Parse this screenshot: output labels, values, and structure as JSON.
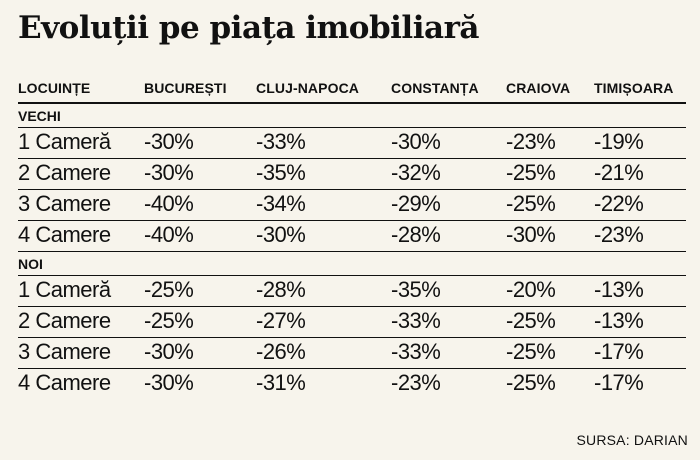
{
  "title": "Evoluții pe piața imobiliară",
  "headers": [
    "LOCUINȚE",
    "BUCUREȘTI",
    "CLUJ-NAPOCA",
    "CONSTANȚA",
    "CRAIOVA",
    "TIMIȘOARA"
  ],
  "sections": [
    {
      "label": "VECHI",
      "rows": [
        [
          "1 Cameră",
          "-30%",
          "-33%",
          "-30%",
          "-23%",
          "-19%"
        ],
        [
          "2 Camere",
          "-30%",
          "-35%",
          "-32%",
          "-25%",
          "-21%"
        ],
        [
          "3 Camere",
          "-40%",
          "-34%",
          "-29%",
          "-25%",
          "-22%"
        ],
        [
          "4 Camere",
          "-40%",
          "-30%",
          "-28%",
          "-30%",
          "-23%"
        ]
      ]
    },
    {
      "label": "NOI",
      "rows": [
        [
          "1 Cameră",
          "-25%",
          "-28%",
          "-35%",
          "-20%",
          "-13%"
        ],
        [
          "2 Camere",
          "-25%",
          "-27%",
          "-33%",
          "-25%",
          "-13%"
        ],
        [
          "3 Camere",
          "-30%",
          "-26%",
          "-33%",
          "-25%",
          "-17%"
        ],
        [
          "4 Camere",
          "-30%",
          "-31%",
          "-23%",
          "-25%",
          "-17%"
        ]
      ]
    }
  ],
  "source": "SURSA: DARIAN"
}
